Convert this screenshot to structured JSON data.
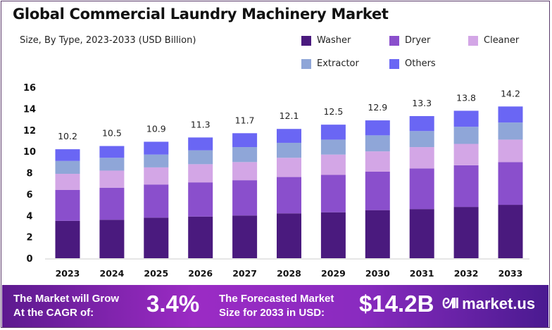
{
  "chart_data": {
    "type": "bar",
    "stacked": true,
    "title": "Global Commercial  Laundry Machinery Market",
    "subtitle": "Size, By Type, 2023-2033 (USD Billion)",
    "xlabel": "",
    "ylabel": "",
    "ylim": [
      0,
      16
    ],
    "yticks": [
      0,
      2,
      4,
      6,
      8,
      10,
      12,
      14,
      16
    ],
    "grid": false,
    "legend": "top-right",
    "categories": [
      "2023",
      "2024",
      "2025",
      "2026",
      "2027",
      "2028",
      "2029",
      "2030",
      "2031",
      "2032",
      "2033"
    ],
    "totals": [
      "10.2",
      "10.5",
      "10.9",
      "11.3",
      "11.7",
      "12.1",
      "12.5",
      "12.9",
      "13.3",
      "13.8",
      "14.2"
    ],
    "series": [
      {
        "name": "Washer",
        "color": "#4a1a7e",
        "values": [
          3.5,
          3.6,
          3.8,
          3.9,
          4.0,
          4.2,
          4.3,
          4.5,
          4.6,
          4.8,
          5.0
        ]
      },
      {
        "name": "Dryer",
        "color": "#8a4fcc",
        "values": [
          2.9,
          3.0,
          3.1,
          3.2,
          3.3,
          3.4,
          3.5,
          3.6,
          3.8,
          3.9,
          4.0
        ]
      },
      {
        "name": "Cleaner",
        "color": "#d3a6e6",
        "values": [
          1.5,
          1.6,
          1.6,
          1.7,
          1.7,
          1.8,
          1.9,
          1.9,
          2.0,
          2.0,
          2.1
        ]
      },
      {
        "name": "Extractor",
        "color": "#8fa6d8",
        "values": [
          1.2,
          1.2,
          1.2,
          1.3,
          1.4,
          1.4,
          1.4,
          1.5,
          1.5,
          1.6,
          1.6
        ]
      },
      {
        "name": "Others",
        "color": "#6a66f4",
        "values": [
          1.1,
          1.1,
          1.2,
          1.2,
          1.3,
          1.3,
          1.4,
          1.4,
          1.4,
          1.5,
          1.5
        ]
      }
    ]
  },
  "banner": {
    "cagr_text": [
      "The Market will Grow",
      "At the CAGR of:"
    ],
    "cagr_value": "3.4%",
    "forecast_text": [
      "The Forecasted Market",
      "Size for 2033 in USD:"
    ],
    "forecast_value": "$14.2B",
    "logo": "market.us"
  }
}
